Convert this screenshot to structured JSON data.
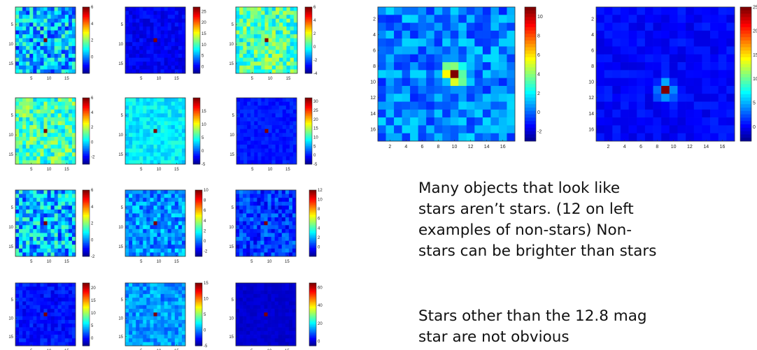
{
  "caption": {
    "lines": [
      "Many objects that look like",
      "stars aren’t stars. (12 on left",
      "examples of non-stars) Non-",
      "stars can be brighter than stars"
    ],
    "lines2": [
      "Stars other than the 12.8 mag",
      "star are not obvious"
    ]
  },
  "chart_data": [
    {
      "type": "heatmap",
      "group": "non-star",
      "title": "",
      "grid_size": 17,
      "colormap": "jet",
      "xticks": [
        5,
        10,
        15
      ],
      "yticks": [
        5,
        10,
        15
      ],
      "colorbar_range": [
        -2,
        6
      ],
      "colorbar_ticks": [
        0,
        2,
        4,
        6
      ],
      "background_level": 0.5,
      "noise": 1.3,
      "peak_value": 6,
      "peak_position": [
        9,
        9
      ]
    },
    {
      "type": "heatmap",
      "group": "non-star",
      "title": "",
      "grid_size": 17,
      "colormap": "jet",
      "xticks": [
        5,
        10,
        15
      ],
      "yticks": [
        5,
        10,
        15
      ],
      "colorbar_range": [
        -3,
        27
      ],
      "colorbar_ticks": [
        0,
        5,
        10,
        15,
        20,
        25
      ],
      "background_level": 0.5,
      "noise": 1.2,
      "peak_value": 27,
      "peak_position": [
        9,
        9
      ]
    },
    {
      "type": "heatmap",
      "group": "non-star",
      "title": "",
      "grid_size": 17,
      "colormap": "jet",
      "xticks": [
        5,
        10,
        15
      ],
      "yticks": [
        5,
        10,
        15
      ],
      "colorbar_range": [
        -4,
        6
      ],
      "colorbar_ticks": [
        -4,
        -2,
        0,
        2,
        4,
        6
      ],
      "background_level": 0.5,
      "noise": 1.3,
      "peak_value": 6,
      "peak_position": [
        9,
        9
      ]
    },
    {
      "type": "heatmap",
      "group": "non-star",
      "title": "",
      "grid_size": 17,
      "colormap": "jet",
      "xticks": [
        5,
        10,
        15
      ],
      "yticks": [
        5,
        10,
        15
      ],
      "colorbar_range": [
        -3,
        6
      ],
      "colorbar_ticks": [
        -2,
        0,
        2,
        4,
        6
      ],
      "background_level": 1.0,
      "noise": 1.2,
      "peak_value": 6,
      "peak_position": [
        9,
        9
      ]
    },
    {
      "type": "heatmap",
      "group": "non-star",
      "title": "",
      "grid_size": 17,
      "colormap": "jet",
      "xticks": [
        5,
        10,
        15
      ],
      "yticks": [
        5,
        10,
        15
      ],
      "colorbar_range": [
        -5,
        20
      ],
      "colorbar_ticks": [
        -5,
        0,
        5,
        10,
        15
      ],
      "background_level": 4,
      "noise": 1.5,
      "peak_value": 20,
      "peak_position": [
        9,
        9
      ]
    },
    {
      "type": "heatmap",
      "group": "non-star",
      "title": "",
      "grid_size": 17,
      "colormap": "jet",
      "xticks": [
        5,
        10,
        15
      ],
      "yticks": [
        5,
        10,
        15
      ],
      "colorbar_range": [
        -5,
        32
      ],
      "colorbar_ticks": [
        -5,
        0,
        5,
        10,
        15,
        20,
        25,
        30
      ],
      "background_level": 0.5,
      "noise": 1.2,
      "peak_value": 32,
      "peak_position": [
        9,
        9
      ]
    },
    {
      "type": "heatmap",
      "group": "non-star",
      "title": "",
      "grid_size": 17,
      "colormap": "jet",
      "xticks": [
        5,
        10,
        15
      ],
      "yticks": [
        5,
        10,
        15
      ],
      "colorbar_range": [
        -2,
        6
      ],
      "colorbar_ticks": [
        -2,
        0,
        2,
        4,
        6
      ],
      "background_level": 0.5,
      "noise": 1.3,
      "peak_value": 6,
      "peak_position": [
        9,
        9
      ]
    },
    {
      "type": "heatmap",
      "group": "non-star",
      "title": "",
      "grid_size": 17,
      "colormap": "jet",
      "xticks": [
        5,
        10,
        15
      ],
      "yticks": [
        5,
        10,
        15
      ],
      "colorbar_range": [
        -3,
        10
      ],
      "colorbar_ticks": [
        -2,
        0,
        2,
        4,
        6,
        8,
        10
      ],
      "background_level": 0.5,
      "noise": 1.3,
      "peak_value": 10,
      "peak_position": [
        9,
        9
      ]
    },
    {
      "type": "heatmap",
      "group": "non-star",
      "title": "",
      "grid_size": 17,
      "colormap": "jet",
      "xticks": [
        5,
        10,
        15
      ],
      "yticks": [
        5,
        10,
        15
      ],
      "colorbar_range": [
        -2,
        12
      ],
      "colorbar_ticks": [
        0,
        2,
        4,
        6,
        8,
        10,
        12
      ],
      "background_level": 0.5,
      "noise": 1.3,
      "peak_value": 12,
      "peak_position": [
        9,
        9
      ]
    },
    {
      "type": "heatmap",
      "group": "non-star",
      "title": "",
      "grid_size": 17,
      "colormap": "jet",
      "xticks": [
        5,
        10,
        15
      ],
      "yticks": [
        5,
        10,
        15
      ],
      "colorbar_range": [
        -3,
        22
      ],
      "colorbar_ticks": [
        0,
        5,
        10,
        15,
        20
      ],
      "background_level": 0.5,
      "noise": 1.2,
      "peak_value": 22,
      "peak_position": [
        9,
        9
      ]
    },
    {
      "type": "heatmap",
      "group": "non-star",
      "title": "",
      "grid_size": 17,
      "colormap": "jet",
      "xticks": [
        5,
        10,
        15
      ],
      "yticks": [
        5,
        10,
        15
      ],
      "colorbar_range": [
        -5,
        15
      ],
      "colorbar_ticks": [
        -5,
        0,
        5,
        10,
        15
      ],
      "background_level": 0.5,
      "noise": 1.5,
      "peak_value": 15,
      "peak_position": [
        9,
        9
      ]
    },
    {
      "type": "heatmap",
      "group": "non-star",
      "title": "",
      "grid_size": 17,
      "colormap": "jet",
      "xticks": [
        5,
        10,
        15
      ],
      "yticks": [
        5,
        10,
        15
      ],
      "colorbar_range": [
        -5,
        65
      ],
      "colorbar_ticks": [
        0,
        20,
        40,
        60
      ],
      "background_level": 0.5,
      "noise": 1.3,
      "peak_value": 65,
      "peak_position": [
        9,
        9
      ]
    },
    {
      "type": "heatmap",
      "group": "star",
      "title": "",
      "grid_size": 17,
      "colormap": "jet",
      "xticks": [
        2,
        4,
        6,
        8,
        10,
        12,
        14,
        16
      ],
      "yticks": [
        2,
        4,
        6,
        8,
        10,
        12,
        14,
        16
      ],
      "colorbar_range": [
        -3,
        11
      ],
      "colorbar_ticks": [
        -2,
        0,
        2,
        4,
        6,
        8,
        10
      ],
      "background_level": 0.5,
      "noise": 1.3,
      "peak_value": 11,
      "peak_position": [
        10,
        9
      ],
      "psf_amplitude": 7.5,
      "psf_sigma": 0.9
    },
    {
      "type": "heatmap",
      "group": "star",
      "title": "",
      "grid_size": 17,
      "colormap": "jet",
      "xticks": [
        2,
        4,
        6,
        8,
        10,
        12,
        14,
        16
      ],
      "yticks": [
        2,
        4,
        6,
        8,
        10,
        12,
        14,
        16
      ],
      "colorbar_range": [
        -3,
        25
      ],
      "colorbar_ticks": [
        0,
        5,
        10,
        15,
        20,
        25
      ],
      "background_level": 0.5,
      "noise": 1.0,
      "peak_value": 25,
      "peak_position": [
        9,
        11
      ],
      "psf_amplitude": 11,
      "psf_sigma": 0.7
    }
  ]
}
